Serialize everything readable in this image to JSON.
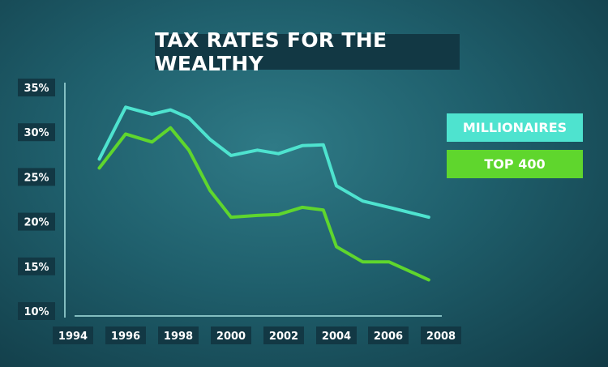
{
  "colors": {
    "millionaires": "#4ee3cf",
    "top400": "#5fd62d",
    "title_bg": "#123844",
    "axis": "#9ed8d8"
  },
  "chart_data": {
    "type": "line",
    "title": "TAX RATES FOR THE WEALTHY",
    "xlabel": "",
    "ylabel": "",
    "x_ticks": [
      "1994",
      "1996",
      "1998",
      "2000",
      "2002",
      "2004",
      "2006",
      "2008"
    ],
    "y_ticks": [
      "35%",
      "30%",
      "25%",
      "20%",
      "15%",
      "10%"
    ],
    "xlim": [
      1994,
      2008
    ],
    "ylim": [
      10,
      35
    ],
    "grid": false,
    "legend_position": "right",
    "x": [
      1995,
      1996,
      1997,
      1997.7,
      1998.4,
      1999.2,
      2000,
      2001,
      2001.8,
      2002.7,
      2003.5,
      2004,
      2005,
      2006,
      2007.5
    ],
    "series": [
      {
        "name": "MILLIONAIRES",
        "color": "#4ee3cf",
        "values": [
          27.0,
          32.8,
          32.0,
          32.5,
          31.6,
          29.2,
          27.4,
          28.0,
          27.6,
          28.5,
          28.6,
          24.0,
          22.3,
          21.6,
          20.5
        ]
      },
      {
        "name": "TOP 400",
        "color": "#5fd62d",
        "values": [
          26.0,
          29.8,
          28.9,
          30.5,
          28.0,
          23.5,
          20.5,
          20.7,
          20.8,
          21.6,
          21.3,
          17.2,
          15.5,
          15.5,
          13.5
        ]
      }
    ]
  }
}
